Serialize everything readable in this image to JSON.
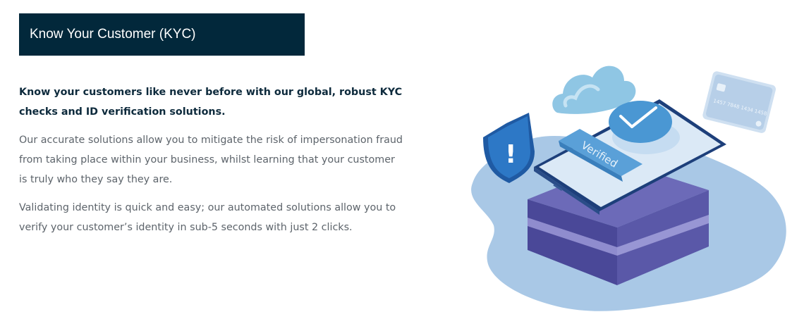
{
  "header": {
    "title": "Know Your Customer (KYC)"
  },
  "content": {
    "lead": "Know your customers like never before with our global, robust KYC checks and ID verification solutions.",
    "paragraphs": [
      "Our accurate solutions allow you to mitigate the risk of impersonation fraud from taking place within your business, whilst learning that your customer is truly who they say they are.",
      "Validating identity is quick and easy; our automated solutions allow you to verify your customer’s identity in sub-5 seconds with just 2 clicks."
    ]
  },
  "illustration": {
    "verified_label": "Verified",
    "shield_mark": "!",
    "card_numbers": "1457 7848 1434 1458",
    "icons": [
      "cloud-icon",
      "shield-alert-icon",
      "credit-card-icon",
      "checkmark-icon",
      "smartphone-icon"
    ]
  },
  "colors": {
    "header_bg": "#02283b",
    "header_text": "#ffffff",
    "lead_text": "#0d2a3c",
    "body_text": "#5d646b",
    "blob": "#a8c8e6",
    "platform": "#6a68b6",
    "accent_blue": "#3f8fd0"
  }
}
